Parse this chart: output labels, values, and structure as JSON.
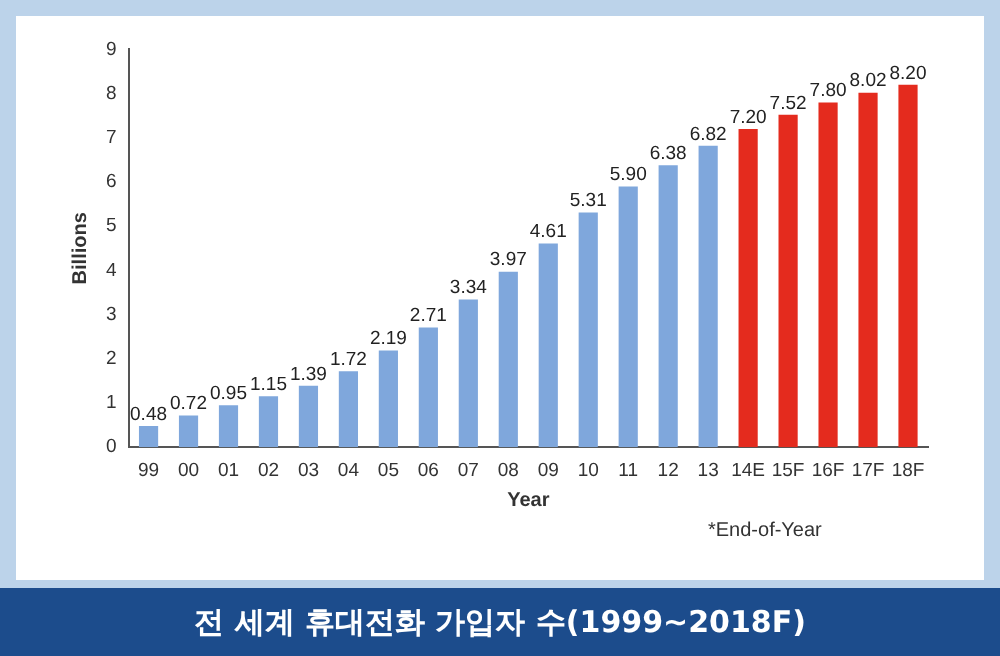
{
  "chart_data": {
    "type": "bar",
    "title": "전 세계 휴대전화 가입자 수(1999~2018F)",
    "xlabel": "Year",
    "ylabel": "Billions",
    "annotations": [
      "*End-of-Year"
    ],
    "categories": [
      "99",
      "00",
      "01",
      "02",
      "03",
      "04",
      "05",
      "06",
      "07",
      "08",
      "09",
      "10",
      "11",
      "12",
      "13",
      "14E",
      "15F",
      "16F",
      "17F",
      "18F"
    ],
    "values": [
      0.48,
      0.72,
      0.95,
      1.15,
      1.39,
      1.72,
      2.19,
      2.71,
      3.34,
      3.97,
      4.61,
      5.31,
      5.9,
      6.38,
      6.82,
      7.2,
      7.52,
      7.8,
      8.02,
      8.2
    ],
    "value_labels": [
      "0.48",
      "0.72",
      "0.95",
      "1.15",
      "1.39",
      "1.72",
      "2.19",
      "2.71",
      "3.34",
      "3.97",
      "4.61",
      "5.31",
      "5.90",
      "6.38",
      "6.82",
      "7.20",
      "7.52",
      "7.80",
      "8.02",
      "8.20"
    ],
    "colors": [
      "#7fa7dc",
      "#7fa7dc",
      "#7fa7dc",
      "#7fa7dc",
      "#7fa7dc",
      "#7fa7dc",
      "#7fa7dc",
      "#7fa7dc",
      "#7fa7dc",
      "#7fa7dc",
      "#7fa7dc",
      "#7fa7dc",
      "#7fa7dc",
      "#7fa7dc",
      "#7fa7dc",
      "#e42b1e",
      "#e42b1e",
      "#e42b1e",
      "#e42b1e",
      "#e42b1e"
    ],
    "ylim": [
      0,
      9
    ],
    "yticks": [
      0,
      1,
      2,
      3,
      4,
      5,
      6,
      7,
      8,
      9
    ]
  }
}
